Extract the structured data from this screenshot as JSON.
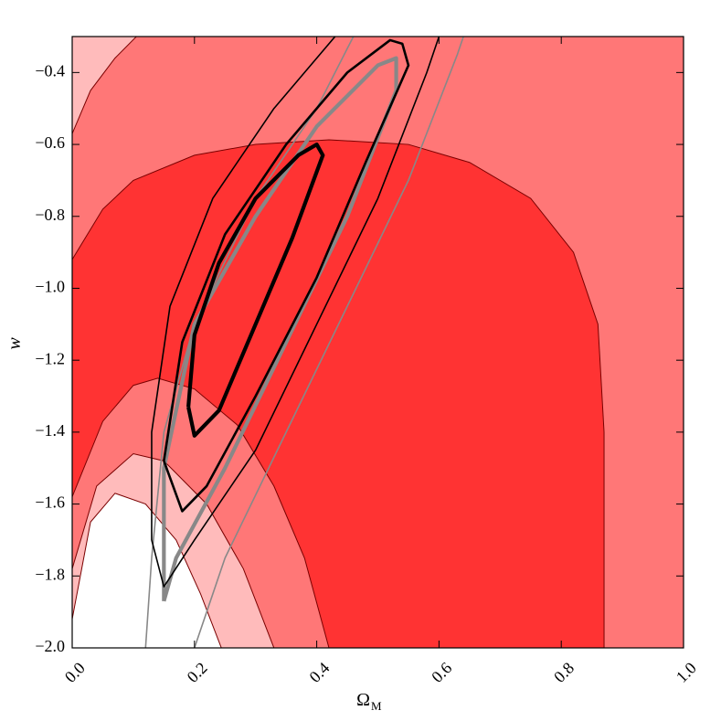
{
  "chart_data": {
    "type": "contour",
    "xlabel": "Ω",
    "xlabel_sub": "M",
    "ylabel": "w",
    "xlim": [
      0,
      1
    ],
    "ylim": [
      -2.0,
      -0.3
    ],
    "xticks": [
      {
        "value": 0,
        "label": "0.0"
      },
      0.2,
      0.4,
      0.6,
      0.8,
      {
        "value": 1,
        "label": "1.0"
      }
    ],
    "yticks": [
      {
        "value": -2.0,
        "label": "−2.0"
      },
      {
        "value": -1.8,
        "label": "−1.8"
      },
      {
        "value": -1.6,
        "label": "−1.6"
      },
      {
        "value": -1.4,
        "label": "−1.4"
      },
      {
        "value": -1.2,
        "label": "−1.2"
      },
      {
        "value": -1.0,
        "label": "−1.0"
      },
      {
        "value": -0.8,
        "label": "−0.8"
      },
      {
        "value": -0.6,
        "label": "−0.6"
      },
      {
        "value": -0.4,
        "label": "−0.4"
      }
    ],
    "background": "#ff7777",
    "regions": [
      {
        "color": "#ffbbbb",
        "x": [
          0,
          0.03,
          0.07,
          0.105,
          0
        ],
        "y": [
          -0.57,
          -0.45,
          -0.36,
          -0.3,
          -0.3
        ]
      },
      {
        "color": "#ff3333",
        "x": [
          0,
          0.05,
          0.1,
          0.2,
          0.3,
          0.42,
          0.55,
          0.65,
          0.75,
          0.82,
          0.86,
          0.87,
          0.87,
          0
        ],
        "y": [
          -0.92,
          -0.78,
          -0.7,
          -0.63,
          -0.6,
          -0.587,
          -0.6,
          -0.65,
          -0.75,
          -0.9,
          -1.1,
          -1.4,
          -2.0,
          -2.0
        ]
      },
      {
        "color": "#ff7777",
        "x": [
          0,
          0.05,
          0.1,
          0.14,
          0.2,
          0.27,
          0.33,
          0.38,
          0.42,
          0
        ],
        "y": [
          -1.58,
          -1.37,
          -1.27,
          -1.25,
          -1.28,
          -1.38,
          -1.55,
          -1.75,
          -2.0,
          -2.0
        ]
      },
      {
        "color": "#ffbbbb",
        "x": [
          0,
          0.04,
          0.1,
          0.15,
          0.22,
          0.28,
          0.33,
          0
        ],
        "y": [
          -1.78,
          -1.55,
          -1.46,
          -1.48,
          -1.6,
          -1.78,
          -2.0,
          -2.0
        ]
      },
      {
        "color": "#ffffff",
        "x": [
          0,
          0.03,
          0.07,
          0.12,
          0.17,
          0.21,
          0.244,
          0
        ],
        "y": [
          -1.92,
          -1.65,
          -1.57,
          -1.6,
          -1.7,
          -1.85,
          -2.0,
          -2.0
        ]
      }
    ],
    "contours": [
      {
        "color": "#888888",
        "weight": "light",
        "x": [
          0.12,
          0.13,
          0.15,
          0.2,
          0.3,
          0.4,
          0.46
        ],
        "y": [
          -2.0,
          -1.75,
          -1.4,
          -1.1,
          -0.75,
          -0.5,
          -0.3
        ]
      },
      {
        "color": "#888888",
        "weight": "light",
        "x": [
          0.2,
          0.25,
          0.35,
          0.45,
          0.55,
          0.63,
          0.64
        ],
        "y": [
          -2.0,
          -1.75,
          -1.4,
          -1.05,
          -0.7,
          -0.35,
          -0.3
        ]
      },
      {
        "color": "#888888",
        "weight": "heavy",
        "x": [
          0.15,
          0.17,
          0.25,
          0.35,
          0.45,
          0.53,
          0.53,
          0.5,
          0.4,
          0.3,
          0.2,
          0.15,
          0.15
        ],
        "y": [
          -1.87,
          -1.75,
          -1.5,
          -1.15,
          -0.8,
          -0.45,
          -0.36,
          -0.38,
          -0.55,
          -0.8,
          -1.1,
          -1.5,
          -1.87
        ]
      },
      {
        "color": "#000000",
        "weight": "light",
        "x": [
          0.13,
          0.15,
          0.2,
          0.3,
          0.4,
          0.5,
          0.58,
          0.6
        ],
        "y": [
          -1.7,
          -1.83,
          -1.7,
          -1.45,
          -1.1,
          -0.75,
          -0.4,
          -0.3
        ]
      },
      {
        "color": "#000000",
        "weight": "light",
        "x": [
          0.43,
          0.33,
          0.23,
          0.16,
          0.13,
          0.13
        ],
        "y": [
          -0.3,
          -0.5,
          -0.75,
          -1.05,
          -1.4,
          -1.7
        ]
      },
      {
        "color": "#000000",
        "weight": "medium",
        "x": [
          0.15,
          0.18,
          0.22,
          0.3,
          0.4,
          0.48,
          0.55,
          0.54,
          0.52,
          0.45,
          0.35,
          0.25,
          0.18,
          0.15
        ],
        "y": [
          -1.48,
          -1.62,
          -1.55,
          -1.3,
          -0.97,
          -0.65,
          -0.38,
          -0.32,
          -0.31,
          -0.4,
          -0.6,
          -0.85,
          -1.15,
          -1.48
        ]
      },
      {
        "color": "#000000",
        "weight": "heavy",
        "x": [
          0.19,
          0.2,
          0.24,
          0.3,
          0.36,
          0.41,
          0.4,
          0.37,
          0.3,
          0.24,
          0.2,
          0.19
        ],
        "y": [
          -1.33,
          -1.41,
          -1.34,
          -1.1,
          -0.86,
          -0.63,
          -0.6,
          -0.63,
          -0.75,
          -0.93,
          -1.13,
          -1.33
        ]
      }
    ]
  }
}
